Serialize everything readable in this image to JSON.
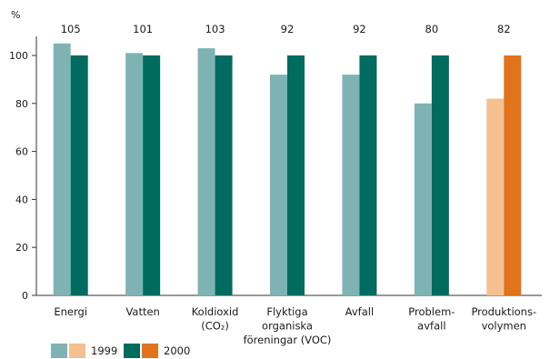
{
  "chart_data": {
    "type": "bar",
    "title": "",
    "unit": "%",
    "xlabel": "",
    "ylabel": "",
    "ylim": [
      0,
      100
    ],
    "yticks": [
      0,
      20,
      40,
      60,
      80,
      100
    ],
    "grid": false,
    "legend_position": "bottom-left",
    "categories": [
      [
        "Energi"
      ],
      [
        "Vatten"
      ],
      [
        "Koldioxid",
        "(CO₂)"
      ],
      [
        "Flyktiga",
        "organiska",
        "föreningar (VOC)"
      ],
      [
        "Avfall"
      ],
      [
        "Problem-",
        "avfall"
      ],
      [
        "Produktions-",
        "volymen"
      ]
    ],
    "value_labels": [
      "105",
      "101",
      "103",
      "92",
      "92",
      "80",
      "82"
    ],
    "series": [
      {
        "name": "1999",
        "values": [
          105,
          101,
          103,
          92,
          92,
          80,
          82
        ]
      },
      {
        "name": "2000",
        "values": [
          100,
          100,
          100,
          100,
          100,
          100,
          100
        ]
      }
    ],
    "colors": {
      "1999": "#7fb3b3",
      "2000": "#006b5f",
      "1999_highlight": "#f5c08f",
      "2000_highlight": "#e0731c"
    },
    "highlight_category_index": 6
  }
}
